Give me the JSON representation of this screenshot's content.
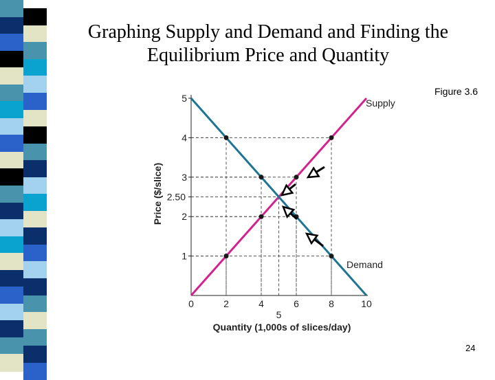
{
  "slide": {
    "title_line1": "Graphing Supply and Demand and Finding the",
    "title_line2": "Equilibrium Price and Quantity",
    "figure_label": "Figure 3.6",
    "page_number": "24"
  },
  "colors": {
    "supply": "#d4218e",
    "demand": "#1c7593",
    "strip": [
      "#4a93ad",
      "#0b2f6b",
      "#2a62c9",
      "#000000",
      "#e3e3c6",
      "#4a93ad",
      "#0aa2cf",
      "#a3d2ef",
      "#2a62c9",
      "#e3e3c6",
      "#000000",
      "#4a93ad",
      "#0b2f6b",
      "#a3d2ef",
      "#0aa2cf",
      "#e3e3c6",
      "#0b2f6b",
      "#2a62c9",
      "#a3d2ef",
      "#0b2f6b",
      "#4a93ad",
      "#e3e3c6"
    ]
  },
  "chart_data": {
    "type": "line",
    "xlabel": "Quantity (1,000s of slices/day)",
    "ylabel": "Price ($/slice)",
    "xlim": [
      0,
      10
    ],
    "ylim": [
      0,
      5
    ],
    "x_ticks": [
      "0",
      "2",
      "4",
      "6",
      "8",
      "10"
    ],
    "y_ticks": [
      "1",
      "2",
      "3",
      "4",
      "5"
    ],
    "extra_x_tick": {
      "label": "5",
      "value": 5
    },
    "extra_y_tick": {
      "label": "2.50",
      "value": 2.5
    },
    "series": [
      {
        "name": "Supply",
        "line": [
          [
            0,
            0
          ],
          [
            10,
            5
          ]
        ],
        "points": [
          [
            2,
            1
          ],
          [
            4,
            2
          ],
          [
            6,
            3
          ],
          [
            8,
            4
          ]
        ]
      },
      {
        "name": "Demand",
        "line": [
          [
            0,
            5
          ],
          [
            10,
            0
          ]
        ],
        "points": [
          [
            2,
            4
          ],
          [
            4,
            3
          ],
          [
            6,
            2
          ],
          [
            8,
            1
          ]
        ]
      }
    ],
    "equilibrium": {
      "quantity": 5,
      "price": 2.5
    },
    "grid": false
  }
}
